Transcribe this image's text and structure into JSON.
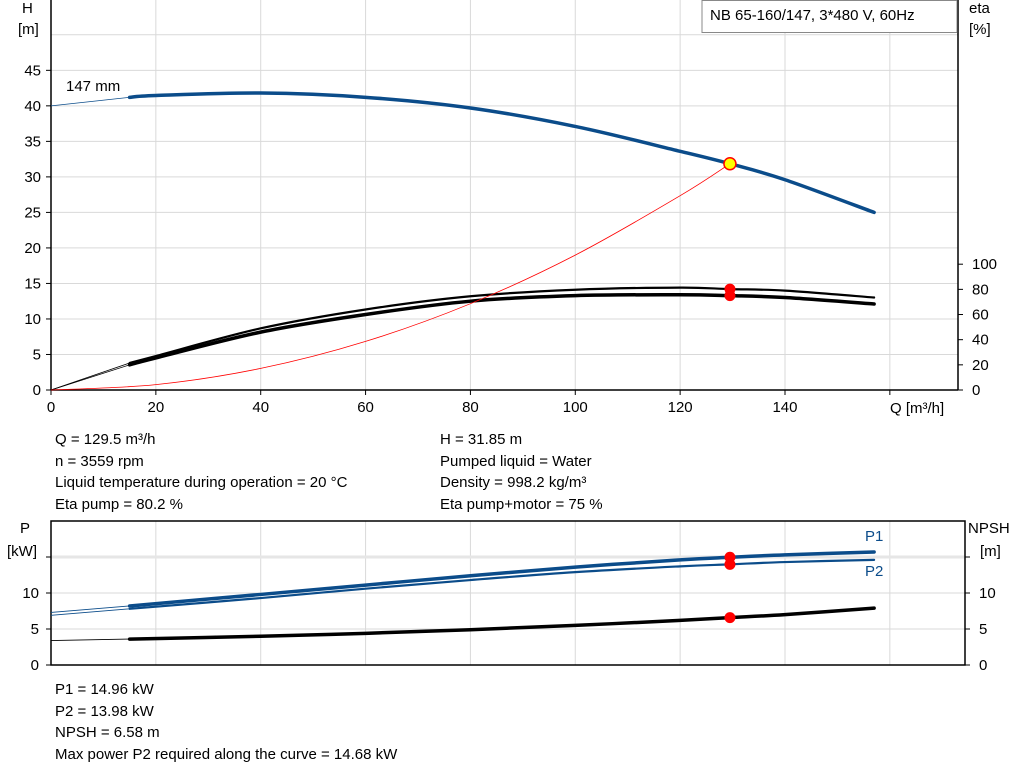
{
  "title_box": "NB 65-160/147, 3*480 V, 60Hz",
  "colors": {
    "head": "#0b4c8a",
    "power": "#0b4c8a",
    "eta": "#000000",
    "npsh": "#000000",
    "system": "#ff0000",
    "marker": "#ff0000",
    "duty_point": "#ffff00",
    "grid": "#d9d9d9"
  },
  "chart_data": [
    {
      "type": "line",
      "title": "NB 65-160/147, 3*480 V, 60Hz",
      "xlabel": "Q [m³/h]",
      "ylabel": "H\n[m]",
      "ylabel_lines": [
        "H",
        "[m]"
      ],
      "y2label_lines": [
        "eta",
        "[%]"
      ],
      "xlim": [
        0,
        173
      ],
      "ylim": [
        0,
        54.9
      ],
      "y2lim": [
        0,
        310
      ],
      "xticks": [
        0,
        20,
        40,
        60,
        80,
        100,
        120,
        140
      ],
      "xtick_labels": [
        "0",
        "20",
        "40",
        "60",
        "80",
        "100",
        "120",
        "140"
      ],
      "yticks": [
        0,
        5,
        10,
        15,
        20,
        25,
        30,
        35,
        40,
        45
      ],
      "ytick_labels": [
        "0",
        "5",
        "10",
        "15",
        "20",
        "25",
        "30",
        "35",
        "40",
        "45"
      ],
      "y2ticks": [
        0,
        20,
        40,
        60,
        80,
        100
      ],
      "y2tick_labels": [
        "0",
        "20",
        "40",
        "60",
        "80",
        "100"
      ],
      "grid": true,
      "annotation": "147 mm",
      "series": [
        {
          "key": "head",
          "axis": "y",
          "x": [
            0,
            15,
            20,
            40,
            60,
            80,
            100,
            120,
            129.5,
            140,
            157
          ],
          "y": [
            40,
            41.2,
            41.45,
            41.8,
            41.2,
            39.7,
            37.1,
            33.6,
            31.85,
            29.6,
            25
          ]
        },
        {
          "key": "eta_pump",
          "axis": "y2",
          "x": [
            0,
            15,
            20,
            40,
            60,
            80,
            100,
            120,
            129.5,
            140,
            157
          ],
          "y": [
            0,
            21.5,
            27,
            49,
            64,
            74.5,
            79.7,
            81.4,
            80.2,
            79,
            73.5
          ]
        },
        {
          "key": "eta_pump_motor",
          "axis": "y2",
          "x": [
            0,
            15,
            20,
            40,
            60,
            80,
            100,
            120,
            129.5,
            140,
            157
          ],
          "y": [
            0,
            20,
            25.5,
            46,
            60,
            70.6,
            75,
            75.7,
            75,
            73.5,
            68.4
          ]
        },
        {
          "key": "system_curve",
          "axis": "y",
          "x": [
            0,
            20,
            40,
            60,
            80,
            100,
            120,
            129.5
          ],
          "y": [
            0,
            0.76,
            3.04,
            6.84,
            12.15,
            18.99,
            27.35,
            31.85
          ]
        }
      ],
      "duty_point": {
        "x": 129.5,
        "y": 31.85
      },
      "markers": [
        {
          "axis": "y2",
          "x": 129.5,
          "y": 80.2
        },
        {
          "axis": "y2",
          "x": 129.5,
          "y": 75
        }
      ]
    },
    {
      "type": "line",
      "ylabel_lines": [
        "P",
        "[kW]"
      ],
      "y2label_lines": [
        "NPSH",
        "[m]"
      ],
      "xlim": [
        0,
        173
      ],
      "ylim": [
        0,
        20
      ],
      "yticks": [
        0,
        5,
        10,
        15
      ],
      "ytick_labels": [
        "0",
        "5",
        "10",
        ""
      ],
      "y2tick_labels": [
        "0",
        "5",
        "10",
        ""
      ],
      "grid": true,
      "series": [
        {
          "key": "p1",
          "name": "P1",
          "x": [
            0,
            15,
            40,
            60,
            80,
            100,
            120,
            129.5,
            140,
            157
          ],
          "y": [
            7.3,
            8.2,
            9.8,
            11.1,
            12.4,
            13.6,
            14.6,
            14.96,
            15.3,
            15.7
          ]
        },
        {
          "key": "p2",
          "name": "P2",
          "x": [
            0,
            15,
            40,
            60,
            80,
            100,
            120,
            129.5,
            140,
            157
          ],
          "y": [
            6.9,
            7.8,
            9.3,
            10.6,
            11.8,
            12.9,
            13.7,
            13.98,
            14.3,
            14.6
          ]
        },
        {
          "key": "npsh",
          "x": [
            0,
            15,
            40,
            60,
            80,
            100,
            120,
            129.5,
            140,
            157
          ],
          "y": [
            3.4,
            3.6,
            4.0,
            4.4,
            4.9,
            5.5,
            6.2,
            6.58,
            7.0,
            7.9
          ]
        }
      ],
      "markers": [
        {
          "x": 129.5,
          "y": 14.96
        },
        {
          "x": 129.5,
          "y": 13.98
        },
        {
          "x": 129.5,
          "y": 6.58
        }
      ]
    }
  ],
  "info_top_left": [
    "Q = 129.5 m³/h",
    "n = 3559 rpm",
    "Liquid temperature during operation = 20 °C",
    "Eta pump = 80.2 %"
  ],
  "info_top_right": [
    "H = 31.85 m",
    "Pumped liquid = Water",
    "Density = 998.2 kg/m³",
    "Eta pump+motor = 75 %"
  ],
  "info_bottom": [
    "P1 = 14.96 kW",
    "P2 = 13.98 kW",
    "NPSH = 6.58 m",
    "Max power P2 required along the curve = 14.68 kW"
  ]
}
